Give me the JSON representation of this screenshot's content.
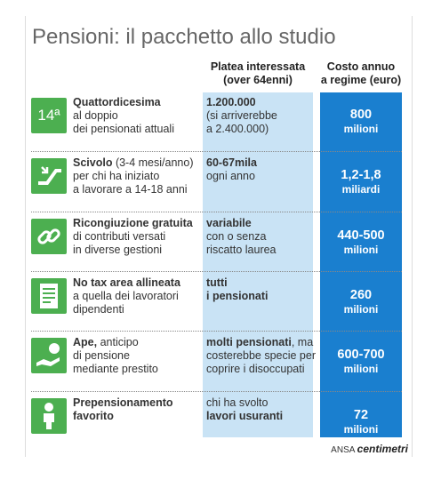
{
  "header": {
    "title": "Pensioni: il pacchetto allo studio"
  },
  "columns": {
    "platea": [
      "Platea interessata",
      "(over 64enni)"
    ],
    "costo": [
      "Costo annuo",
      "a regime (euro)"
    ]
  },
  "rows": [
    {
      "icon_text": "14ª",
      "measure": [
        [
          {
            "text": "Quattordicesima",
            "bold": true
          }
        ],
        [
          {
            "text": "al doppio",
            "bold": false
          }
        ],
        [
          {
            "text": "dei pensionati attuali",
            "bold": false
          }
        ]
      ],
      "platea": [
        [
          {
            "text": "1.200.000",
            "bold": true
          }
        ],
        [
          {
            "text": "(si arriverebbe",
            "bold": false
          }
        ],
        [
          {
            "text": "a 2.400.000)",
            "bold": false
          }
        ]
      ],
      "costo": {
        "value": "800",
        "unit": "milioni"
      }
    },
    {
      "measure": [
        [
          {
            "text": "Scivolo",
            "bold": true
          },
          {
            "text": " (3-4 mesi/anno)",
            "bold": false
          }
        ],
        [
          {
            "text": "per chi ha iniziato",
            "bold": false
          }
        ],
        [
          {
            "text": "a lavorare a 14-18 anni",
            "bold": false
          }
        ]
      ],
      "platea": [
        [
          {
            "text": "60-67mila",
            "bold": true
          }
        ],
        [
          {
            "text": "ogni anno",
            "bold": false
          }
        ]
      ],
      "costo": {
        "value": "1,2-1,8",
        "unit": "miliardi"
      }
    },
    {
      "measure": [
        [
          {
            "text": "Ricongiuzione gratuita",
            "bold": true
          }
        ],
        [
          {
            "text": "di contributi versati",
            "bold": false
          }
        ],
        [
          {
            "text": "in diverse gestioni",
            "bold": false
          }
        ]
      ],
      "platea": [
        [
          {
            "text": "variabile",
            "bold": true
          }
        ],
        [
          {
            "text": "con o senza",
            "bold": false
          }
        ],
        [
          {
            "text": "riscatto laurea",
            "bold": false
          }
        ]
      ],
      "costo": {
        "value": "440-500",
        "unit": "milioni"
      }
    },
    {
      "measure": [
        [
          {
            "text": "No tax area allineata",
            "bold": true
          }
        ],
        [
          {
            "text": "a quella dei lavoratori",
            "bold": false
          }
        ],
        [
          {
            "text": "dipendenti",
            "bold": false
          }
        ]
      ],
      "platea": [
        [
          {
            "text": "tutti",
            "bold": true
          }
        ],
        [
          {
            "text": "i pensionati",
            "bold": true
          }
        ]
      ],
      "costo": {
        "value": "260",
        "unit": "milioni"
      }
    },
    {
      "measure": [
        [
          {
            "text": "Ape,",
            "bold": true
          },
          {
            "text": " anticipo",
            "bold": false
          }
        ],
        [
          {
            "text": "di pensione",
            "bold": false
          }
        ],
        [
          {
            "text": "mediante prestito",
            "bold": false
          }
        ]
      ],
      "platea": [
        [
          {
            "text": "molti pensionati",
            "bold": true
          },
          {
            "text": ", ma",
            "bold": false
          }
        ],
        [
          {
            "text": "costerebbe specie per",
            "bold": false
          }
        ],
        [
          {
            "text": "coprire i disoccupati",
            "bold": false
          }
        ]
      ],
      "costo": {
        "value": "600-700",
        "unit": "milioni"
      }
    },
    {
      "measure": [
        [
          {
            "text": "Prepensionamento",
            "bold": true
          }
        ],
        [
          {
            "text": "favorito",
            "bold": true
          }
        ]
      ],
      "platea": [
        [
          {
            "text": "chi ha svolto",
            "bold": false
          }
        ],
        [
          {
            "text": "lavori usuranti",
            "bold": true
          }
        ]
      ],
      "costo": {
        "value": "72",
        "unit": "milioni"
      }
    }
  ],
  "footer": {
    "source": "ANSA",
    "brand": "centimetri"
  }
}
